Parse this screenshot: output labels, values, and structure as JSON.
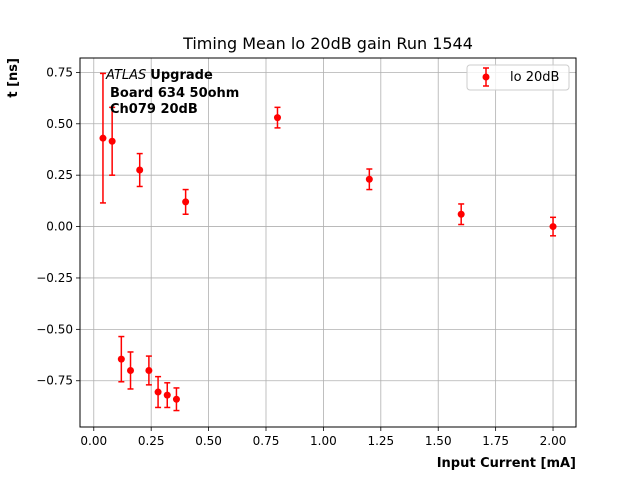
{
  "chart_data": {
    "type": "scatter",
    "title": "Timing Mean lo 20dB gain Run 1544",
    "xlabel": "Input Current [mA]",
    "ylabel": "t [ns]",
    "xlim": [
      -0.06,
      2.1
    ],
    "ylim": [
      -0.975,
      0.82
    ],
    "xticks": [
      0.0,
      0.25,
      0.5,
      0.75,
      1.0,
      1.25,
      1.5,
      1.75,
      2.0
    ],
    "xtick_labels": [
      "0.00",
      "0.25",
      "0.50",
      "0.75",
      "1.00",
      "1.25",
      "1.50",
      "1.75",
      "2.00"
    ],
    "yticks": [
      -0.75,
      -0.5,
      -0.25,
      0.0,
      0.25,
      0.5,
      0.75
    ],
    "ytick_labels": [
      "−0.75",
      "−0.50",
      "−0.25",
      "0.00",
      "0.25",
      "0.50",
      "0.75"
    ],
    "grid": true,
    "legend_position": "top-right",
    "annotation": {
      "italic": "ATLAS",
      "bold": "Upgrade",
      "line2": "Board 634 50ohm",
      "line3": "Ch079 20dB"
    },
    "series": [
      {
        "name": "lo 20dB",
        "color": "#ff0000",
        "points": [
          {
            "x": 0.04,
            "y": 0.43,
            "err": 0.315
          },
          {
            "x": 0.08,
            "y": 0.415,
            "err": 0.165
          },
          {
            "x": 0.12,
            "y": -0.645,
            "err": 0.11
          },
          {
            "x": 0.16,
            "y": -0.7,
            "err": 0.09
          },
          {
            "x": 0.2,
            "y": 0.275,
            "err": 0.08
          },
          {
            "x": 0.24,
            "y": -0.7,
            "err": 0.07
          },
          {
            "x": 0.28,
            "y": -0.805,
            "err": 0.075
          },
          {
            "x": 0.32,
            "y": -0.82,
            "err": 0.06
          },
          {
            "x": 0.36,
            "y": -0.84,
            "err": 0.055
          },
          {
            "x": 0.4,
            "y": 0.12,
            "err": 0.06
          },
          {
            "x": 0.8,
            "y": 0.53,
            "err": 0.05
          },
          {
            "x": 1.2,
            "y": 0.23,
            "err": 0.05
          },
          {
            "x": 1.6,
            "y": 0.06,
            "err": 0.05
          },
          {
            "x": 2.0,
            "y": 0.0,
            "err": 0.045
          }
        ]
      }
    ]
  }
}
